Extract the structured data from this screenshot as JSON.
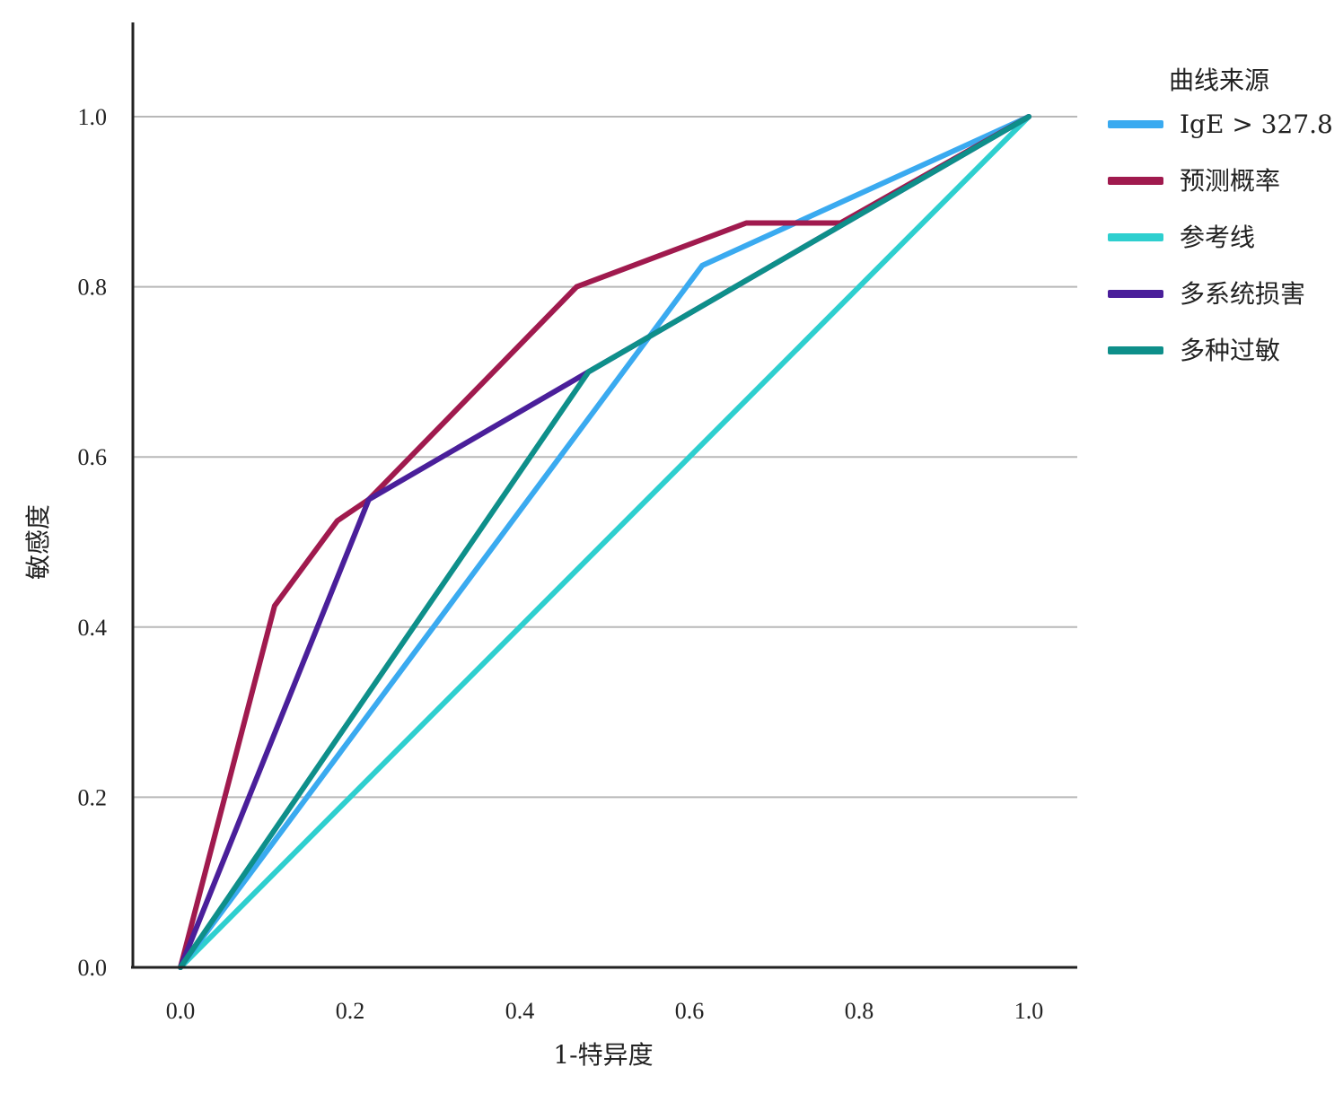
{
  "chart_data": {
    "type": "line",
    "title": "",
    "xlabel": "1-特异度",
    "ylabel": "敏感度",
    "xlim": [
      0,
      1
    ],
    "ylim": [
      0,
      1.1
    ],
    "x_ticks": [
      "0.0",
      "0.2",
      "0.4",
      "0.6",
      "0.8",
      "1.0"
    ],
    "y_ticks": [
      "0.0",
      "0.2",
      "0.4",
      "0.6",
      "0.8",
      "1.0"
    ],
    "grid": "horizontal",
    "legend": {
      "title": "曲线来源",
      "position": "right"
    },
    "series": [
      {
        "name": "IgE > 327.8",
        "color": "#3aaaf0",
        "points": [
          [
            0,
            0
          ],
          [
            0.615,
            0.825
          ],
          [
            1.0,
            1.0
          ]
        ]
      },
      {
        "name": "预测概率",
        "color": "#a01a4e",
        "points": [
          [
            0,
            0
          ],
          [
            0.111,
            0.425
          ],
          [
            0.185,
            0.525
          ],
          [
            0.222,
            0.55
          ],
          [
            0.467,
            0.8
          ],
          [
            0.667,
            0.875
          ],
          [
            0.778,
            0.875
          ],
          [
            1.0,
            1.0
          ]
        ]
      },
      {
        "name": "参考线",
        "color": "#2ecfcf",
        "points": [
          [
            0,
            0
          ],
          [
            1.0,
            1.0
          ]
        ]
      },
      {
        "name": "多系统损害",
        "color": "#4a1f9a",
        "points": [
          [
            0,
            0
          ],
          [
            0.222,
            0.55
          ],
          [
            0.481,
            0.7
          ],
          [
            1.0,
            1.0
          ]
        ]
      },
      {
        "name": "多种过敏",
        "color": "#0e8f8a",
        "points": [
          [
            0,
            0
          ],
          [
            0.481,
            0.7
          ],
          [
            1.0,
            1.0
          ]
        ]
      }
    ]
  }
}
